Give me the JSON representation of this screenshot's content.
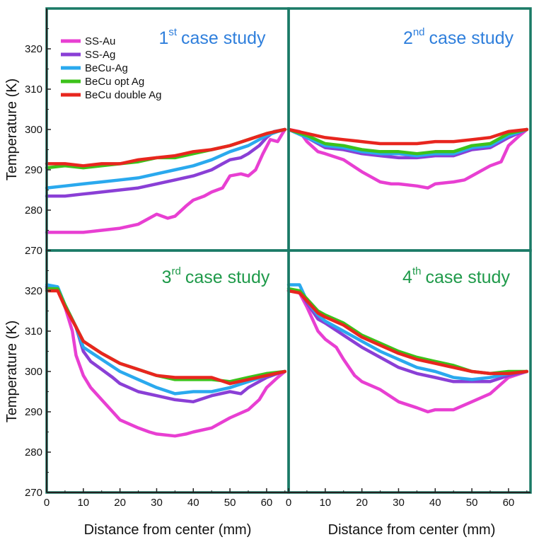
{
  "figure": {
    "ylabel": "Temperature (K)",
    "xlabel": "Distance from center (mm)",
    "frame_color": "#1a7a66",
    "legend": [
      {
        "name": "SS-Au",
        "color": "#e83fd2"
      },
      {
        "name": "SS-Ag",
        "color": "#8a3fd6"
      },
      {
        "name": "BeCu-Ag",
        "color": "#2aa9ee"
      },
      {
        "name": "BeCu opt Ag",
        "color": "#3cc21a"
      },
      {
        "name": "BeCu double Ag",
        "color": "#e8261e"
      }
    ]
  },
  "chart_data": [
    {
      "type": "line",
      "title_num": "1",
      "title_sup": "st",
      "title_text": "case study",
      "title_color": "#2f7fdc",
      "xlim": [
        0,
        66
      ],
      "ylim": [
        270,
        330
      ],
      "xticks": [
        "0",
        "10",
        "20",
        "30",
        "40",
        "50",
        "60"
      ],
      "yticks": [
        "270",
        "280",
        "290",
        "300",
        "310",
        "320"
      ],
      "grid": false,
      "series": [
        {
          "name": "SS-Au",
          "color": "#e83fd2",
          "x": [
            0,
            5,
            10,
            15,
            20,
            25,
            28,
            30,
            33,
            35,
            38,
            40,
            43,
            45,
            48,
            50,
            53,
            55,
            57,
            59,
            61,
            63,
            65
          ],
          "y": [
            274.5,
            274.5,
            274.5,
            275,
            275.5,
            276.5,
            278,
            279,
            278,
            278.5,
            281,
            282.5,
            283.5,
            284.5,
            285.5,
            288.5,
            289,
            288.5,
            290,
            294,
            297.5,
            297,
            300
          ]
        },
        {
          "name": "SS-Ag",
          "color": "#8a3fd6",
          "x": [
            0,
            5,
            10,
            15,
            20,
            25,
            30,
            35,
            40,
            45,
            48,
            50,
            53,
            55,
            58,
            60,
            62,
            65
          ],
          "y": [
            283.5,
            283.5,
            284,
            284.5,
            285,
            285.5,
            286.5,
            287.5,
            288.5,
            290,
            291.5,
            292.5,
            293,
            294,
            296,
            298,
            299.5,
            300
          ]
        },
        {
          "name": "BeCu-Ag",
          "color": "#2aa9ee",
          "x": [
            0,
            5,
            10,
            15,
            20,
            25,
            30,
            35,
            40,
            45,
            50,
            55,
            60,
            63,
            65
          ],
          "y": [
            285.5,
            286,
            286.5,
            287,
            287.5,
            288,
            289,
            290,
            291,
            292.5,
            294.5,
            296,
            298.5,
            299.5,
            300
          ]
        },
        {
          "name": "BeCu opt Ag",
          "color": "#3cc21a",
          "x": [
            0,
            5,
            10,
            15,
            20,
            25,
            30,
            35,
            40,
            45,
            50,
            55,
            60,
            65
          ],
          "y": [
            290.5,
            291,
            290.5,
            291,
            291.5,
            292,
            293,
            293,
            294,
            295,
            296,
            297.5,
            299,
            300
          ]
        },
        {
          "name": "BeCu double Ag",
          "color": "#e8261e",
          "x": [
            0,
            5,
            10,
            15,
            20,
            25,
            30,
            35,
            40,
            45,
            50,
            55,
            60,
            65
          ],
          "y": [
            291.5,
            291.5,
            291,
            291.5,
            291.5,
            292.5,
            293,
            293.5,
            294.5,
            295,
            296,
            297.5,
            299,
            300
          ]
        }
      ]
    },
    {
      "type": "line",
      "title_num": "2",
      "title_sup": "nd",
      "title_text": "case study",
      "title_color": "#2f7fdc",
      "xlim": [
        0,
        66
      ],
      "ylim": [
        270,
        330
      ],
      "xticks": [],
      "yticks": [],
      "grid": false,
      "series": [
        {
          "name": "SS-Au",
          "color": "#e83fd2",
          "x": [
            0,
            3,
            5,
            8,
            10,
            15,
            20,
            25,
            28,
            30,
            35,
            38,
            40,
            45,
            48,
            50,
            55,
            58,
            60,
            63,
            65
          ],
          "y": [
            300,
            299.5,
            297,
            294.5,
            294,
            292.5,
            289.5,
            287,
            286.5,
            286.5,
            286,
            285.5,
            286.5,
            287,
            287.5,
            288.5,
            291,
            292,
            296,
            298.5,
            300
          ]
        },
        {
          "name": "SS-Ag",
          "color": "#8a3fd6",
          "x": [
            0,
            5,
            10,
            15,
            20,
            25,
            30,
            35,
            40,
            45,
            50,
            55,
            60,
            65
          ],
          "y": [
            300,
            298,
            295.5,
            295,
            294,
            293.5,
            293,
            293,
            293.5,
            293.5,
            295,
            295.5,
            298,
            300
          ]
        },
        {
          "name": "BeCu-Ag",
          "color": "#2aa9ee",
          "x": [
            0,
            5,
            10,
            15,
            20,
            25,
            30,
            35,
            40,
            45,
            50,
            55,
            60,
            65
          ],
          "y": [
            300,
            298,
            296,
            295.5,
            294.5,
            294,
            294,
            293.5,
            294,
            294,
            295.5,
            296,
            298.5,
            300
          ]
        },
        {
          "name": "BeCu opt Ag",
          "color": "#3cc21a",
          "x": [
            0,
            5,
            10,
            15,
            20,
            25,
            30,
            35,
            40,
            45,
            50,
            55,
            60,
            65
          ],
          "y": [
            300,
            298.5,
            296.5,
            296,
            295,
            294.5,
            294.5,
            294,
            294.5,
            294.5,
            296,
            296.5,
            299,
            300
          ]
        },
        {
          "name": "BeCu double Ag",
          "color": "#e8261e",
          "x": [
            0,
            5,
            10,
            15,
            20,
            25,
            30,
            35,
            40,
            45,
            50,
            55,
            60,
            65
          ],
          "y": [
            300,
            299,
            298,
            297.5,
            297,
            296.5,
            296.5,
            296.5,
            297,
            297,
            297.5,
            298,
            299.5,
            300
          ]
        }
      ]
    },
    {
      "type": "line",
      "title_num": "3",
      "title_sup": "rd",
      "title_text": "case study",
      "title_color": "#1f9a4a",
      "xlim": [
        0,
        66
      ],
      "ylim": [
        270,
        330
      ],
      "xticks": [
        "0",
        "10",
        "20",
        "30",
        "40",
        "50",
        "60"
      ],
      "yticks": [
        "270",
        "280",
        "290",
        "300",
        "310",
        "320"
      ],
      "grid": false,
      "series": [
        {
          "name": "SS-Au",
          "color": "#e83fd2",
          "x": [
            0,
            3,
            5,
            7,
            8,
            10,
            12,
            15,
            18,
            20,
            25,
            28,
            30,
            35,
            38,
            40,
            45,
            50,
            55,
            58,
            60,
            63,
            65
          ],
          "y": [
            321,
            320.5,
            316,
            310,
            304,
            299,
            296,
            293,
            290,
            288,
            286,
            285,
            284.5,
            284,
            284.5,
            285,
            286,
            288.5,
            290.5,
            293,
            296,
            298.5,
            300
          ]
        },
        {
          "name": "SS-Ag",
          "color": "#8a3fd6",
          "x": [
            0,
            3,
            5,
            8,
            10,
            12,
            15,
            18,
            20,
            25,
            30,
            35,
            40,
            45,
            50,
            53,
            55,
            60,
            63,
            65
          ],
          "y": [
            321,
            320.5,
            316.5,
            311,
            305,
            302.5,
            300.5,
            298.5,
            297,
            295,
            294,
            293,
            292.5,
            294,
            295,
            294.5,
            296,
            298.5,
            299.5,
            300
          ]
        },
        {
          "name": "BeCu-Ag",
          "color": "#2aa9ee",
          "x": [
            0,
            3,
            5,
            8,
            10,
            15,
            20,
            25,
            30,
            35,
            40,
            45,
            50,
            55,
            60,
            65
          ],
          "y": [
            321.5,
            321,
            316.5,
            311,
            306,
            303,
            300,
            298,
            296,
            294.5,
            295,
            295,
            296,
            297.5,
            299,
            300
          ]
        },
        {
          "name": "BeCu opt Ag",
          "color": "#3cc21a",
          "x": [
            0,
            3,
            5,
            8,
            10,
            15,
            20,
            25,
            30,
            35,
            40,
            45,
            50,
            55,
            60,
            65
          ],
          "y": [
            320.5,
            320.5,
            316.5,
            311,
            307.5,
            304.5,
            302,
            300.5,
            299,
            298,
            298,
            298,
            297.5,
            298.5,
            299.5,
            300
          ]
        },
        {
          "name": "BeCu double Ag",
          "color": "#e8261e",
          "x": [
            0,
            3,
            5,
            8,
            10,
            15,
            20,
            25,
            30,
            35,
            40,
            45,
            50,
            55,
            60,
            65
          ],
          "y": [
            320,
            320,
            316,
            311,
            307.5,
            304.5,
            302,
            300.5,
            299,
            298.5,
            298.5,
            298.5,
            297,
            298,
            299,
            300
          ]
        }
      ]
    },
    {
      "type": "line",
      "title_num": "4",
      "title_sup": "th",
      "title_text": "case study",
      "title_color": "#1f9a4a",
      "xlim": [
        0,
        66
      ],
      "ylim": [
        270,
        330
      ],
      "xticks": [
        "0",
        "10",
        "20",
        "30",
        "40",
        "50",
        "60"
      ],
      "yticks": [],
      "grid": false,
      "series": [
        {
          "name": "SS-Au",
          "color": "#e83fd2",
          "x": [
            0,
            3,
            5,
            8,
            10,
            13,
            15,
            18,
            20,
            25,
            30,
            35,
            38,
            40,
            45,
            50,
            55,
            60,
            65
          ],
          "y": [
            320,
            319.5,
            316,
            310,
            308,
            306,
            303,
            299,
            297.5,
            295.5,
            292.5,
            291,
            290,
            290.5,
            290.5,
            292.5,
            294.5,
            298.5,
            300
          ]
        },
        {
          "name": "SS-Ag",
          "color": "#8a3fd6",
          "x": [
            0,
            3,
            5,
            8,
            10,
            15,
            20,
            25,
            30,
            35,
            40,
            45,
            50,
            55,
            60,
            65
          ],
          "y": [
            320,
            320,
            317,
            313,
            312,
            309,
            306,
            303.5,
            301,
            299.5,
            298.5,
            297.5,
            297.5,
            297.5,
            299,
            300
          ]
        },
        {
          "name": "BeCu-Ag",
          "color": "#2aa9ee",
          "x": [
            0,
            3,
            5,
            8,
            10,
            15,
            20,
            25,
            30,
            35,
            40,
            45,
            50,
            55,
            60,
            65
          ],
          "y": [
            321.5,
            321.5,
            317.5,
            314,
            312.5,
            310,
            307.5,
            305,
            303,
            301,
            300,
            298.5,
            298,
            298.5,
            299.5,
            300
          ]
        },
        {
          "name": "BeCu opt Ag",
          "color": "#3cc21a",
          "x": [
            0,
            3,
            5,
            8,
            10,
            15,
            20,
            25,
            30,
            35,
            40,
            45,
            50,
            55,
            60,
            65
          ],
          "y": [
            320.5,
            320,
            318,
            315,
            314,
            312,
            309,
            307,
            305,
            303.5,
            302.5,
            301.5,
            300,
            299.5,
            300,
            300
          ]
        },
        {
          "name": "BeCu double Ag",
          "color": "#e8261e",
          "x": [
            0,
            3,
            5,
            8,
            10,
            15,
            20,
            25,
            30,
            35,
            40,
            45,
            50,
            55,
            60,
            65
          ],
          "y": [
            320,
            319.5,
            317.5,
            314.5,
            313.5,
            311.5,
            308.5,
            306.5,
            304.5,
            303,
            302,
            301,
            300,
            299.5,
            299.5,
            300
          ]
        }
      ]
    }
  ]
}
